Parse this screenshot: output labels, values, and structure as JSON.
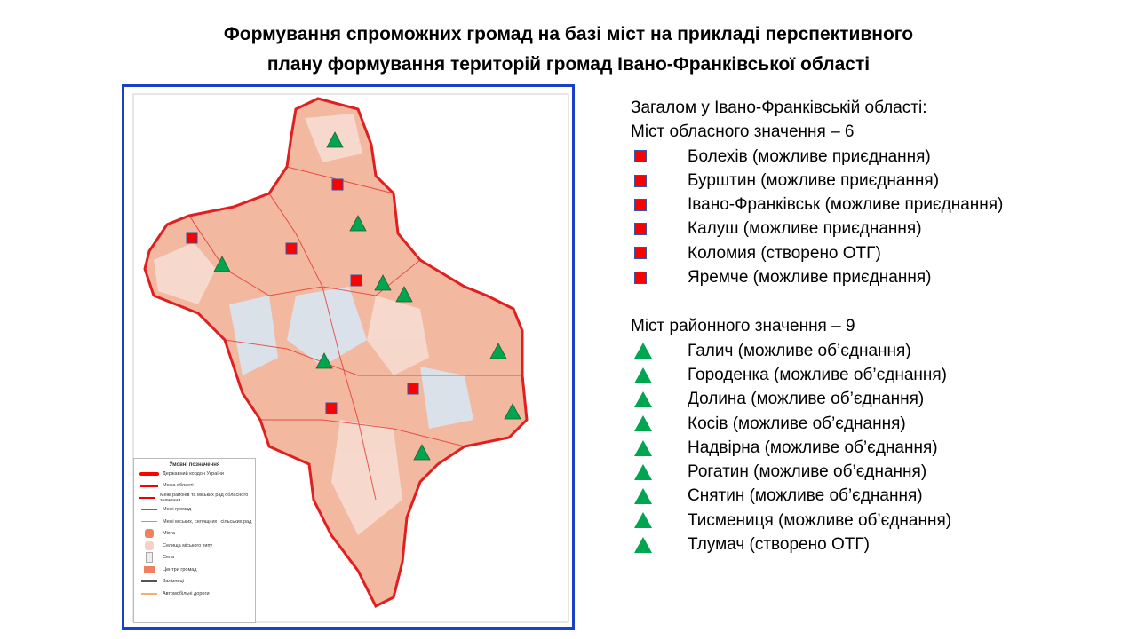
{
  "title_line1": "Формування спроможних громад на базі міст на прикладі перспективного",
  "title_line2": "плану формування територій громад Івано-Франківської області",
  "map": {
    "legend": {
      "title": "Умовні позначення",
      "items": [
        "Державний кордон України",
        "Межа області",
        "Межі районів та міських рад обласного значення",
        "Межі громад",
        "Межі міських, селищних і сільських рад",
        "Міста",
        "Селища міського типу",
        "Села",
        "Центри громад",
        "Залізниці",
        "Автомобільні дороги"
      ]
    },
    "colors": {
      "border": "#1a3fc8",
      "fill": "#f2b8a0",
      "city_marker": "#ff0000",
      "district_marker": "#00a550"
    }
  },
  "summary": {
    "heading": "Загалом у Івано-Франківській області:",
    "oblast_cities_heading": "Міст обласного значення – 6",
    "oblast_cities": [
      "Болехів (можливе приєднання)",
      "Бурштин (можливе приєднання)",
      "Івано-Франківськ (можливе приєднання)",
      "Калуш (можливе приєднання)",
      "Коломия (створено ОТГ)",
      "Яремче (можливе приєднання)"
    ],
    "district_cities_heading": "Міст районного значення – 9",
    "district_cities": [
      "Галич (можливе об’єднання)",
      "Городенка (можливе об’єднання)",
      "Долина (можливе об’єднання)",
      "Косів (можливе об’єднання)",
      "Надвірна (можливе об’єднання)",
      "Рогатин (можливе об’єднання)",
      "Снятин (можливе об’єднання)",
      "Тисмениця (можливе об’єднання)",
      "Тлумач (створено ОТГ)"
    ]
  }
}
